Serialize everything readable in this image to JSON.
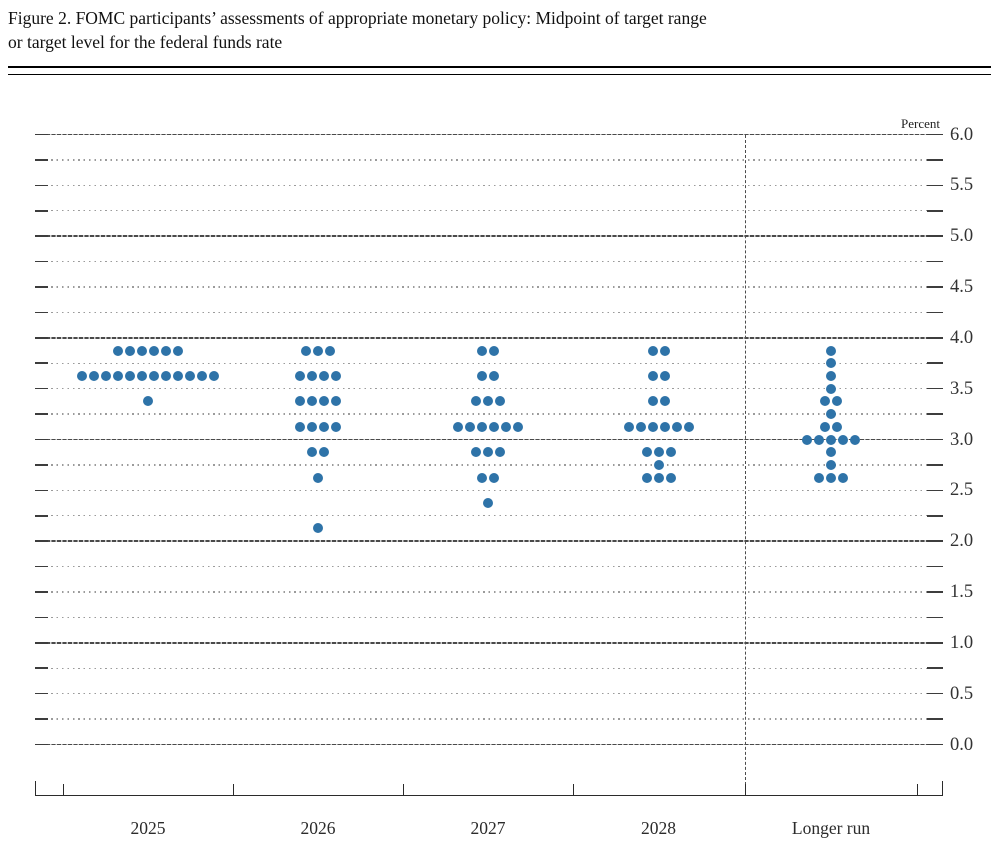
{
  "figure": {
    "title_line1": "Figure 2. FOMC participants’ assessments of appropriate monetary policy: Midpoint of target range",
    "title_line2": "or target level for the federal funds rate"
  },
  "chart_data": {
    "type": "scatter",
    "subtype": "fomc-dot-plot",
    "title": "Figure 2. FOMC participants’ assessments of appropriate monetary policy: Midpoint of target range or target level for the federal funds rate",
    "ylabel": "Percent",
    "xlabel": "",
    "ylim": [
      0.0,
      6.0
    ],
    "grid_interval": 0.25,
    "label_interval": 0.5,
    "grid": "on",
    "legend_position": "none",
    "dot_color": "#2e73a8",
    "percent_label": "Percent",
    "ytick_labels": [
      "6.0",
      "5.5",
      "5.0",
      "4.5",
      "4.0",
      "3.5",
      "3.0",
      "2.5",
      "2.0",
      "1.5",
      "1.0",
      "0.5",
      "0.0"
    ],
    "categories": [
      "2025",
      "2026",
      "2027",
      "2028",
      "Longer run"
    ],
    "separator_before_category": "Longer run",
    "series": [
      {
        "name": "2025",
        "dots": [
          {
            "rate": 3.875,
            "count": 6
          },
          {
            "rate": 3.625,
            "count": 12
          },
          {
            "rate": 3.375,
            "count": 1
          }
        ]
      },
      {
        "name": "2026",
        "dots": [
          {
            "rate": 3.875,
            "count": 3
          },
          {
            "rate": 3.625,
            "count": 4
          },
          {
            "rate": 3.375,
            "count": 4
          },
          {
            "rate": 3.125,
            "count": 4
          },
          {
            "rate": 2.875,
            "count": 2
          },
          {
            "rate": 2.625,
            "count": 1
          },
          {
            "rate": 2.125,
            "count": 1
          }
        ]
      },
      {
        "name": "2027",
        "dots": [
          {
            "rate": 3.875,
            "count": 2
          },
          {
            "rate": 3.625,
            "count": 2
          },
          {
            "rate": 3.375,
            "count": 3
          },
          {
            "rate": 3.125,
            "count": 6
          },
          {
            "rate": 2.875,
            "count": 3
          },
          {
            "rate": 2.625,
            "count": 2
          },
          {
            "rate": 2.375,
            "count": 1
          }
        ]
      },
      {
        "name": "2028",
        "dots": [
          {
            "rate": 3.875,
            "count": 2
          },
          {
            "rate": 3.625,
            "count": 2
          },
          {
            "rate": 3.375,
            "count": 2
          },
          {
            "rate": 3.125,
            "count": 6
          },
          {
            "rate": 2.875,
            "count": 3
          },
          {
            "rate": 2.75,
            "count": 1
          },
          {
            "rate": 2.625,
            "count": 3
          }
        ]
      },
      {
        "name": "Longer run",
        "dots": [
          {
            "rate": 3.875,
            "count": 1
          },
          {
            "rate": 3.75,
            "count": 1
          },
          {
            "rate": 3.625,
            "count": 1
          },
          {
            "rate": 3.5,
            "count": 1
          },
          {
            "rate": 3.375,
            "count": 2
          },
          {
            "rate": 3.25,
            "count": 1
          },
          {
            "rate": 3.125,
            "count": 2
          },
          {
            "rate": 3.0,
            "count": 5
          },
          {
            "rate": 2.875,
            "count": 1
          },
          {
            "rate": 2.75,
            "count": 1
          },
          {
            "rate": 2.625,
            "count": 3
          }
        ]
      }
    ]
  }
}
